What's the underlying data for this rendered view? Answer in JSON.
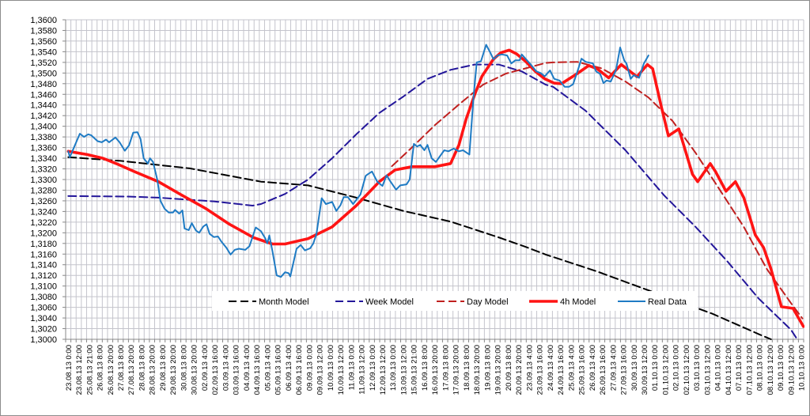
{
  "chart_data": {
    "type": "line",
    "title": "",
    "xlabel": "",
    "ylabel": "",
    "ylim": [
      1.3,
      1.36
    ],
    "ystep": 0.002,
    "grid": true,
    "legend_placement": "bottom-center-inside",
    "yticks": [
      "1,3600",
      "1,3580",
      "1,3560",
      "1,3540",
      "1,3520",
      "1,3500",
      "1,3480",
      "1,3460",
      "1,3440",
      "1,3420",
      "1,3400",
      "1,3380",
      "1,3360",
      "1,3340",
      "1,3320",
      "1,3300",
      "1,3280",
      "1,3260",
      "1,3240",
      "1,3220",
      "1,3200",
      "1,3180",
      "1,3160",
      "1,3140",
      "1,3120",
      "1,3100",
      "1,3080",
      "1,3060",
      "1,3040",
      "1,3020",
      "1,3000"
    ],
    "categories": [
      "23.08.13 0:00",
      "23.08.13 12:00",
      "25.08.13 21:00",
      "26.08.13 8:00",
      "26.08.13 20:00",
      "27.08.13 8:00",
      "27.08.13 20:00",
      "28.08.13 8:00",
      "28.08.13 20:00",
      "29.08.13 8:00",
      "29.08.13 20:00",
      "30.08.13 8:00",
      "30.08.13 20:00",
      "02.09.13 4:00",
      "02.09.13 16:00",
      "03.09.13 4:00",
      "03.09.13 16:00",
      "04.09.13 4:00",
      "04.09.13 16:00",
      "05.09.13 4:00",
      "05.09.13 16:00",
      "06.09.13 4:00",
      "06.09.13 16:00",
      "09.09.13 0:00",
      "09.09.13 12:00",
      "10.09.13 0:00",
      "10.09.13 12:00",
      "11.09.13 0:00",
      "11.09.13 12:00",
      "12.09.13 0:00",
      "12.09.13 12:00",
      "13.09.13 0:00",
      "13.09.13 12:00",
      "15.09.13 21:00",
      "16.09.13 8:00",
      "16.09.13 20:00",
      "17.09.13 8:00",
      "17.09.13 20:00",
      "18.09.13 8:00",
      "18.09.13 20:00",
      "19.09.13 8:00",
      "19.09.13 20:00",
      "20.09.13 8:00",
      "20.09.13 20:00",
      "23.09.13 4:00",
      "23.09.13 16:00",
      "24.09.13 4:00",
      "24.09.13 16:00",
      "25.09.13 4:00",
      "25.09.13 16:00",
      "26.09.13 4:00",
      "26.09.13 16:00",
      "27.09.13 4:00",
      "27.09.13 16:00",
      "30.09.13 0:00",
      "30.09.13 12:00",
      "01.10.13 0:00",
      "01.10.13 12:00",
      "02.10.13 0:00",
      "02.10.13 12:00",
      "03.10.13 0:00",
      "03.10.13 12:00",
      "04.10.13 0:00",
      "04.10.13 12:00",
      "07.10.13 0:00",
      "07.10.13 12:00",
      "08.10.13 0:00",
      "08.10.13 12:00",
      "09.10.13 0:00",
      "09.10.13 12:00",
      "10.10.13 0:00"
    ],
    "x_units": "category index (0 = first label)",
    "series": [
      {
        "name": "Month Model",
        "color": "#000000",
        "style": "dashed",
        "points": [
          [
            0,
            1.3342
          ],
          [
            5,
            1.3335
          ],
          [
            11.6,
            1.3321
          ],
          [
            18.4,
            1.3296
          ],
          [
            22.9,
            1.3289
          ],
          [
            27.5,
            1.3266
          ],
          [
            32,
            1.3241
          ],
          [
            36.5,
            1.3221
          ],
          [
            41,
            1.3192
          ],
          [
            43.6,
            1.3174
          ],
          [
            45.6,
            1.3159
          ],
          [
            50.4,
            1.3128
          ],
          [
            55.4,
            1.3092
          ],
          [
            61.5,
            1.3048
          ],
          [
            66,
            1.3009
          ],
          [
            67.1,
            1.3
          ]
        ]
      },
      {
        "name": "Week Model",
        "color": "#23169a",
        "style": "dashed",
        "points": [
          [
            0,
            1.3269
          ],
          [
            5.6,
            1.3268
          ],
          [
            8.6,
            1.3266
          ],
          [
            11.6,
            1.3262
          ],
          [
            13.9,
            1.3259
          ],
          [
            17.6,
            1.3251
          ],
          [
            18.4,
            1.3254
          ],
          [
            20.7,
            1.3273
          ],
          [
            22.9,
            1.33
          ],
          [
            25.2,
            1.334
          ],
          [
            27.5,
            1.3385
          ],
          [
            29.7,
            1.3425
          ],
          [
            32,
            1.3456
          ],
          [
            34.3,
            1.3489
          ],
          [
            36.5,
            1.3506
          ],
          [
            38.8,
            1.3516
          ],
          [
            41.1,
            1.3516
          ],
          [
            43.3,
            1.3503
          ],
          [
            45.6,
            1.3478
          ],
          [
            46.3,
            1.3474
          ],
          [
            49.4,
            1.3429
          ],
          [
            53.2,
            1.3355
          ],
          [
            56.9,
            1.327
          ],
          [
            59.9,
            1.3211
          ],
          [
            62.9,
            1.3147
          ],
          [
            65.9,
            1.3077
          ],
          [
            69,
            1.3018
          ],
          [
            69.6,
            1.3
          ]
        ]
      },
      {
        "name": "Day Model",
        "color": "#c0201f",
        "style": "dashed",
        "points": [
          [
            30.9,
            1.3325
          ],
          [
            32.8,
            1.336
          ],
          [
            35,
            1.3402
          ],
          [
            37.3,
            1.3441
          ],
          [
            39.6,
            1.3478
          ],
          [
            41.8,
            1.3499
          ],
          [
            44.1,
            1.3511
          ],
          [
            45.6,
            1.3519
          ],
          [
            46.3,
            1.352
          ],
          [
            48.6,
            1.3521
          ],
          [
            50.9,
            1.3509
          ],
          [
            53.2,
            1.3484
          ],
          [
            55.4,
            1.3454
          ],
          [
            57.7,
            1.341
          ],
          [
            59.9,
            1.335
          ],
          [
            62.2,
            1.3281
          ],
          [
            64.5,
            1.3211
          ],
          [
            66.7,
            1.3132
          ],
          [
            69,
            1.3068
          ],
          [
            70.1,
            1.3039
          ]
        ]
      },
      {
        "name": "4h Model",
        "color": "#ff1414",
        "style": "solid-thick",
        "points": [
          [
            0,
            1.3353
          ],
          [
            1.8,
            1.3347
          ],
          [
            3.3,
            1.334
          ],
          [
            4.8,
            1.3328
          ],
          [
            6.3,
            1.3315
          ],
          [
            8.6,
            1.3296
          ],
          [
            10.9,
            1.327
          ],
          [
            13.1,
            1.3246
          ],
          [
            15.4,
            1.3216
          ],
          [
            17.7,
            1.3191
          ],
          [
            19.5,
            1.3179
          ],
          [
            20.7,
            1.3179
          ],
          [
            22.9,
            1.3189
          ],
          [
            25.2,
            1.3211
          ],
          [
            27.5,
            1.3251
          ],
          [
            29.7,
            1.3296
          ],
          [
            31.2,
            1.3318
          ],
          [
            32.8,
            1.3324
          ],
          [
            35,
            1.3324
          ],
          [
            36.5,
            1.333
          ],
          [
            37.3,
            1.3365
          ],
          [
            38,
            1.3414
          ],
          [
            38.8,
            1.3459
          ],
          [
            39.5,
            1.3494
          ],
          [
            40.6,
            1.3526
          ],
          [
            41.3,
            1.3538
          ],
          [
            42.1,
            1.3543
          ],
          [
            42.8,
            1.3536
          ],
          [
            43.6,
            1.3523
          ],
          [
            44.6,
            1.3503
          ],
          [
            45.5,
            1.3489
          ],
          [
            46.4,
            1.3481
          ],
          [
            47.1,
            1.348
          ],
          [
            48.6,
            1.3499
          ],
          [
            49.7,
            1.3514
          ],
          [
            50.5,
            1.3508
          ],
          [
            51.6,
            1.3491
          ],
          [
            52.8,
            1.3516
          ],
          [
            54.3,
            1.3493
          ],
          [
            55.3,
            1.3516
          ],
          [
            55.8,
            1.3508
          ],
          [
            56.6,
            1.3439
          ],
          [
            57.3,
            1.3382
          ],
          [
            58.3,
            1.3395
          ],
          [
            59.6,
            1.331
          ],
          [
            60.1,
            1.3296
          ],
          [
            61.3,
            1.333
          ],
          [
            61.8,
            1.3315
          ],
          [
            62.8,
            1.3278
          ],
          [
            63.7,
            1.3296
          ],
          [
            64.5,
            1.3266
          ],
          [
            65.6,
            1.3196
          ],
          [
            66.4,
            1.3172
          ],
          [
            67.1,
            1.3132
          ],
          [
            68.1,
            1.3061
          ],
          [
            69.2,
            1.3058
          ],
          [
            70.2,
            1.3024
          ]
        ]
      },
      {
        "name": "Real Data",
        "color": "#1f7bc4",
        "style": "solid",
        "points": [
          [
            0,
            1.3353
          ],
          [
            0.15,
            1.3342
          ],
          [
            1.1,
            1.3386
          ],
          [
            1.5,
            1.338
          ],
          [
            1.9,
            1.3385
          ],
          [
            2.2,
            1.3383
          ],
          [
            2.8,
            1.3372
          ],
          [
            3.2,
            1.337
          ],
          [
            3.6,
            1.3375
          ],
          [
            3.9,
            1.337
          ],
          [
            4.5,
            1.3379
          ],
          [
            4.9,
            1.337
          ],
          [
            5.4,
            1.3354
          ],
          [
            5.8,
            1.3364
          ],
          [
            6.2,
            1.3388
          ],
          [
            6.6,
            1.3389
          ],
          [
            6.9,
            1.3376
          ],
          [
            7.2,
            1.334
          ],
          [
            7.6,
            1.333
          ],
          [
            7.8,
            1.334
          ],
          [
            8.1,
            1.3333
          ],
          [
            8.5,
            1.33
          ],
          [
            8.8,
            1.326
          ],
          [
            9.2,
            1.3245
          ],
          [
            9.6,
            1.3238
          ],
          [
            10,
            1.3238
          ],
          [
            10.2,
            1.3243
          ],
          [
            10.6,
            1.3236
          ],
          [
            10.9,
            1.3242
          ],
          [
            11.1,
            1.3208
          ],
          [
            11.5,
            1.3205
          ],
          [
            11.8,
            1.3218
          ],
          [
            12.2,
            1.3204
          ],
          [
            12.5,
            1.32
          ],
          [
            12.9,
            1.3212
          ],
          [
            13.2,
            1.3216
          ],
          [
            13.5,
            1.3198
          ],
          [
            13.9,
            1.3192
          ],
          [
            14.3,
            1.3193
          ],
          [
            14.6,
            1.3184
          ],
          [
            15.1,
            1.3172
          ],
          [
            15.5,
            1.3159
          ],
          [
            15.9,
            1.3168
          ],
          [
            16.3,
            1.317
          ],
          [
            16.9,
            1.3168
          ],
          [
            17.3,
            1.3175
          ],
          [
            17.9,
            1.321
          ],
          [
            18.4,
            1.3203
          ],
          [
            18.8,
            1.319
          ],
          [
            19,
            1.318
          ],
          [
            19.2,
            1.3195
          ],
          [
            19.5,
            1.3165
          ],
          [
            19.9,
            1.312
          ],
          [
            20.3,
            1.3117
          ],
          [
            20.7,
            1.3126
          ],
          [
            21.05,
            1.3124
          ],
          [
            21.2,
            1.3118
          ],
          [
            21.8,
            1.317
          ],
          [
            22.2,
            1.3177
          ],
          [
            22.6,
            1.3167
          ],
          [
            23.1,
            1.3171
          ],
          [
            23.4,
            1.318
          ],
          [
            23.7,
            1.3198
          ],
          [
            24.2,
            1.3265
          ],
          [
            24.6,
            1.3254
          ],
          [
            25.2,
            1.3258
          ],
          [
            25.6,
            1.3241
          ],
          [
            26,
            1.3252
          ],
          [
            26.3,
            1.3267
          ],
          [
            26.7,
            1.3267
          ],
          [
            27.2,
            1.3254
          ],
          [
            27.9,
            1.3272
          ],
          [
            28.4,
            1.3307
          ],
          [
            28.6,
            1.331
          ],
          [
            29,
            1.3315
          ],
          [
            29.5,
            1.3296
          ],
          [
            30,
            1.3288
          ],
          [
            30.4,
            1.3308
          ],
          [
            30.7,
            1.3298
          ],
          [
            31.3,
            1.3281
          ],
          [
            31.7,
            1.3289
          ],
          [
            32.3,
            1.3291
          ],
          [
            32.6,
            1.33
          ],
          [
            33,
            1.3367
          ],
          [
            33.3,
            1.3362
          ],
          [
            33.6,
            1.3365
          ],
          [
            34,
            1.3355
          ],
          [
            34.3,
            1.3365
          ],
          [
            34.7,
            1.334
          ],
          [
            35.1,
            1.3333
          ],
          [
            35.9,
            1.3355
          ],
          [
            36.3,
            1.3353
          ],
          [
            36.8,
            1.3358
          ],
          [
            37.3,
            1.3353
          ],
          [
            37.7,
            1.3355
          ],
          [
            38.3,
            1.3347
          ],
          [
            38.7,
            1.3456
          ],
          [
            39,
            1.352
          ],
          [
            39.4,
            1.3522
          ],
          [
            39.9,
            1.3553
          ],
          [
            40.3,
            1.3538
          ],
          [
            40.6,
            1.3526
          ],
          [
            41,
            1.3533
          ],
          [
            41.4,
            1.3535
          ],
          [
            41.9,
            1.3533
          ],
          [
            42.3,
            1.3518
          ],
          [
            42.7,
            1.3524
          ],
          [
            43.1,
            1.3524
          ],
          [
            43.3,
            1.3535
          ],
          [
            43.7,
            1.3526
          ],
          [
            44.2,
            1.3515
          ],
          [
            44.7,
            1.3503
          ],
          [
            45.1,
            1.35
          ],
          [
            45.5,
            1.3494
          ],
          [
            46,
            1.3505
          ],
          [
            46.4,
            1.3489
          ],
          [
            46.9,
            1.3486
          ],
          [
            47.4,
            1.3474
          ],
          [
            47.8,
            1.3474
          ],
          [
            48.2,
            1.3479
          ],
          [
            48.7,
            1.3508
          ],
          [
            49,
            1.3527
          ],
          [
            49.4,
            1.3521
          ],
          [
            50.1,
            1.3518
          ],
          [
            50.4,
            1.3503
          ],
          [
            50.8,
            1.3498
          ],
          [
            51.1,
            1.3481
          ],
          [
            51.4,
            1.3486
          ],
          [
            51.8,
            1.3484
          ],
          [
            52.3,
            1.3506
          ],
          [
            52.7,
            1.3548
          ],
          [
            53.1,
            1.3523
          ],
          [
            53.3,
            1.3518
          ],
          [
            53.7,
            1.3489
          ],
          [
            54,
            1.3496
          ],
          [
            54.5,
            1.3491
          ],
          [
            54.96,
            1.3518
          ],
          [
            55.4,
            1.3533
          ]
        ]
      }
    ]
  }
}
